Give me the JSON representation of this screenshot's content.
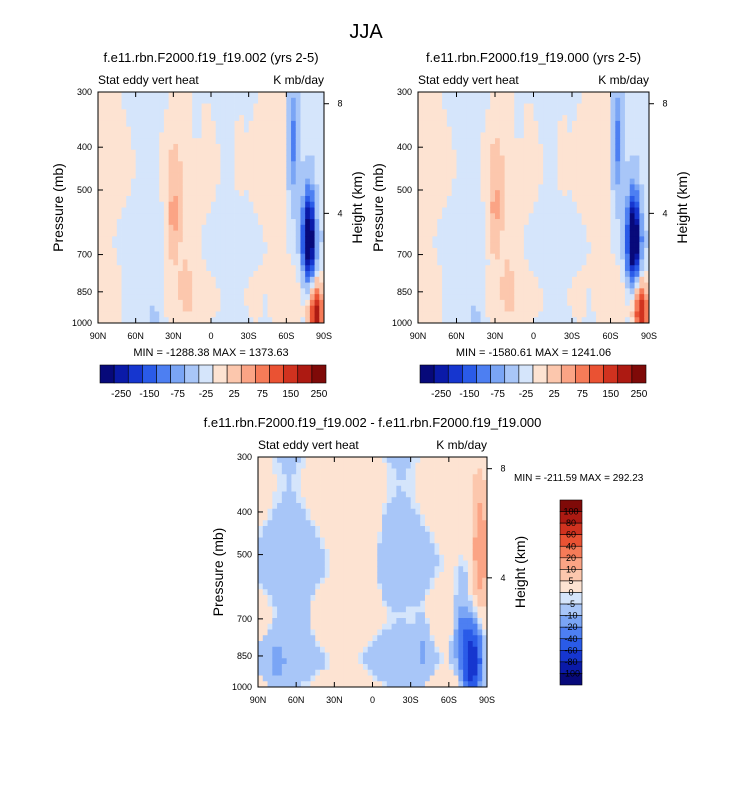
{
  "figure": {
    "title": "JJA"
  },
  "colors": {
    "blue_scale": [
      "#07097a",
      "#0a1aa8",
      "#1636cf",
      "#2a5be8",
      "#4d7ff2",
      "#7aa5f5",
      "#a8c6f8",
      "#d5e5fb"
    ],
    "red_scale": [
      "#fde3d2",
      "#fcc7ad",
      "#fba485",
      "#f67b58",
      "#ea5233",
      "#d0321f",
      "#ad1a12",
      "#7f0a08"
    ],
    "frame": "#000000"
  },
  "chart_data": [
    {
      "id": "panel-1",
      "type": "heatmap",
      "title": "f.e11.rbn.F2000.f19_f19.002 (yrs 2-5)",
      "left_label": "Stat eddy vert heat",
      "right_label": "K mb/day",
      "ylabel": "Pressure (mb)",
      "ylabel_right": "Height (km)",
      "x_ticks": [
        "90N",
        "60N",
        "30N",
        "0",
        "30S",
        "60S",
        "90S"
      ],
      "x_values": [
        90,
        60,
        30,
        0,
        -30,
        -60,
        -90
      ],
      "xlim": [
        90,
        -90
      ],
      "y_ticks": [
        "300",
        "400",
        "500",
        "700",
        "850",
        "1000"
      ],
      "y_values": [
        300,
        400,
        500,
        700,
        850,
        1000
      ],
      "ylim": [
        300,
        1000
      ],
      "y_right_ticks": [
        "8",
        "4"
      ],
      "y_right_values": [
        8,
        4
      ],
      "stats": "MIN = -1288.38   MAX = 1373.63",
      "colorbar_labels": [
        "-250",
        "-150",
        "-75",
        "-25",
        "25",
        "75",
        "150",
        "250"
      ],
      "features": [
        {
          "lat": 30,
          "p": 580,
          "value": 90
        },
        {
          "lat": -78,
          "p": 650,
          "value": -400
        },
        {
          "lat": -66,
          "p": 400,
          "value": -120
        },
        {
          "lat": -84,
          "p": 970,
          "value": 300
        },
        {
          "lat": 20,
          "p": 800,
          "value": 25
        },
        {
          "lat": -22,
          "p": 400,
          "value": 12
        },
        {
          "lat": 65,
          "p": 900,
          "value": -20
        },
        {
          "lat": 45,
          "p": 950,
          "value": -25
        },
        {
          "lat": -44,
          "p": 920,
          "value": -20
        },
        {
          "lat": 12,
          "p": 320,
          "value": -22
        }
      ]
    },
    {
      "id": "panel-2",
      "type": "heatmap",
      "title": "f.e11.rbn.F2000.f19_f19.000 (yrs 2-5)",
      "left_label": "Stat eddy vert heat",
      "right_label": "K mb/day",
      "ylabel": "Pressure (mb)",
      "ylabel_right": "Height (km)",
      "x_ticks": [
        "90N",
        "60N",
        "30N",
        "0",
        "30S",
        "60S",
        "90S"
      ],
      "x_values": [
        90,
        60,
        30,
        0,
        -30,
        -60,
        -90
      ],
      "xlim": [
        90,
        -90
      ],
      "y_ticks": [
        "300",
        "400",
        "500",
        "700",
        "850",
        "1000"
      ],
      "y_values": [
        300,
        400,
        500,
        700,
        850,
        1000
      ],
      "ylim": [
        300,
        1000
      ],
      "y_right_ticks": [
        "8",
        "4"
      ],
      "y_right_values": [
        8,
        4
      ],
      "stats": "MIN = -1580.61   MAX = 1241.06",
      "colorbar_labels": [
        "-250",
        "-150",
        "-75",
        "-25",
        "25",
        "75",
        "150",
        "250"
      ],
      "features": [
        {
          "lat": 30,
          "p": 560,
          "value": 85
        },
        {
          "lat": -78,
          "p": 650,
          "value": -420
        },
        {
          "lat": -66,
          "p": 400,
          "value": -120
        },
        {
          "lat": -84,
          "p": 960,
          "value": 260
        },
        {
          "lat": 20,
          "p": 800,
          "value": 25
        },
        {
          "lat": -22,
          "p": 400,
          "value": 12
        },
        {
          "lat": 65,
          "p": 900,
          "value": -20
        },
        {
          "lat": 45,
          "p": 950,
          "value": -25
        },
        {
          "lat": -44,
          "p": 920,
          "value": -22
        },
        {
          "lat": 12,
          "p": 320,
          "value": -22
        }
      ]
    },
    {
      "id": "panel-diff",
      "type": "heatmap",
      "title": "f.e11.rbn.F2000.f19_f19.002 - f.e11.rbn.F2000.f19_f19.000",
      "left_label": "Stat eddy vert heat",
      "right_label": "K mb/day",
      "ylabel": "Pressure (mb)",
      "ylabel_right": "Height (km)",
      "x_ticks": [
        "90N",
        "60N",
        "30N",
        "0",
        "30S",
        "60S",
        "90S"
      ],
      "x_values": [
        90,
        60,
        30,
        0,
        -30,
        -60,
        -90
      ],
      "xlim": [
        90,
        -90
      ],
      "y_ticks": [
        "300",
        "400",
        "500",
        "700",
        "850",
        "1000"
      ],
      "y_values": [
        300,
        400,
        500,
        700,
        850,
        1000
      ],
      "ylim": [
        300,
        1000
      ],
      "y_right_ticks": [
        "8",
        "4"
      ],
      "y_right_values": [
        8,
        4
      ],
      "stats": "MIN = -211.59   MAX = 292.23",
      "colorbar_labels": [
        "100",
        "80",
        "60",
        "40",
        "20",
        "10",
        "5",
        "0",
        "-5",
        "-10",
        "-20",
        "-40",
        "-60",
        "-80",
        "-100"
      ],
      "features": [
        {
          "lat": -85,
          "p": 500,
          "value": 18
        },
        {
          "lat": -78,
          "p": 880,
          "value": -60
        },
        {
          "lat": -70,
          "p": 760,
          "value": -14
        },
        {
          "lat": 0,
          "p": 500,
          "value": 3
        },
        {
          "lat": -40,
          "p": 820,
          "value": -4
        },
        {
          "lat": 55,
          "p": 650,
          "value": -3
        },
        {
          "lat": 75,
          "p": 900,
          "value": -4
        }
      ]
    }
  ]
}
